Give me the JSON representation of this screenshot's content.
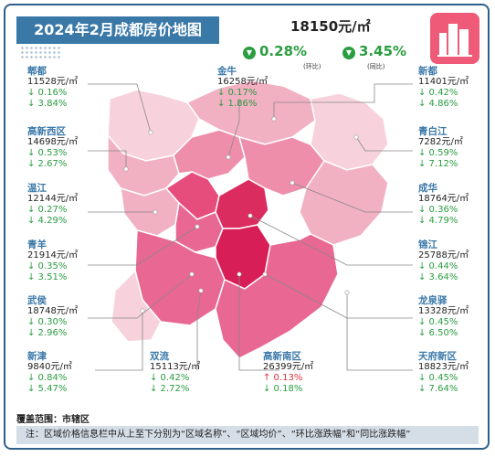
{
  "title": "2024年2月成都房价地图",
  "city": {
    "price": "18150元/㎡",
    "mom_change": "0.28%",
    "mom_label": "(环比)",
    "yoy_change": "3.45%",
    "yoy_label": "(同比)",
    "down_glyph": "▼"
  },
  "colors": {
    "banner": "#3a78a8",
    "down": "#2a9d40",
    "up": "#e0303a",
    "map_light": "#f5c6d3",
    "map_mid": "#ef8aa8",
    "map_dark": "#e04a7a",
    "map_darkest": "#d81e57",
    "logo": "#ee5a78"
  },
  "districts": [
    {
      "name": "郫都",
      "price": "11528元/㎡",
      "mom": "↓ 0.16%",
      "yoy": "↓ 3.84%"
    },
    {
      "name": "高新西区",
      "price": "14698元/㎡",
      "mom": "↓ 0.53%",
      "yoy": "↓ 2.67%"
    },
    {
      "name": "温江",
      "price": "12144元/㎡",
      "mom": "↓ 0.27%",
      "yoy": "↓ 4.29%"
    },
    {
      "name": "青羊",
      "price": "21914元/㎡",
      "mom": "↓ 0.35%",
      "yoy": "↓ 3.51%"
    },
    {
      "name": "武侯",
      "price": "18748元/㎡",
      "mom": "↓ 0.30%",
      "yoy": "↓ 2.96%"
    },
    {
      "name": "新津",
      "price": "9840元/㎡",
      "mom": "↓ 0.84%",
      "yoy": "↓ 5.47%"
    },
    {
      "name": "双流",
      "price": "15113元/㎡",
      "mom": "↓ 0.42%",
      "yoy": "↓ 2.72%"
    },
    {
      "name": "高新南区",
      "price": "26399元/㎡",
      "mom": "↑ 0.13%",
      "yoy": "↓ 0.18%",
      "mom_up": true
    },
    {
      "name": "金牛",
      "price": "16258元/㎡",
      "mom": "↓ 0.17%",
      "yoy": "↓ 1.86%"
    },
    {
      "name": "新都",
      "price": "11401元/㎡",
      "mom": "↓ 0.42%",
      "yoy": "↓ 4.86%"
    },
    {
      "name": "青白江",
      "price": "7282元/㎡",
      "mom": "↓ 0.59%",
      "yoy": "↓ 7.12%"
    },
    {
      "name": "成华",
      "price": "18764元/㎡",
      "mom": "↓ 0.36%",
      "yoy": "↓ 4.79%"
    },
    {
      "name": "锦江",
      "price": "25788元/㎡",
      "mom": "↓ 0.44%",
      "yoy": "↓ 3.64%"
    },
    {
      "name": "龙泉驿",
      "price": "13328元/㎡",
      "mom": "↓ 0.45%",
      "yoy": "↓ 6.50%"
    },
    {
      "name": "天府新区",
      "price": "18823元/㎡",
      "mom": "↓ 0.45%",
      "yoy": "↓ 7.64%"
    }
  ],
  "coverage": "覆盖范围：市辖区",
  "note": "注：区域价格信息栏中从上至下分别为“区域名称”、“区域均价”、“环比涨跌幅”和“同比涨跌幅”"
}
